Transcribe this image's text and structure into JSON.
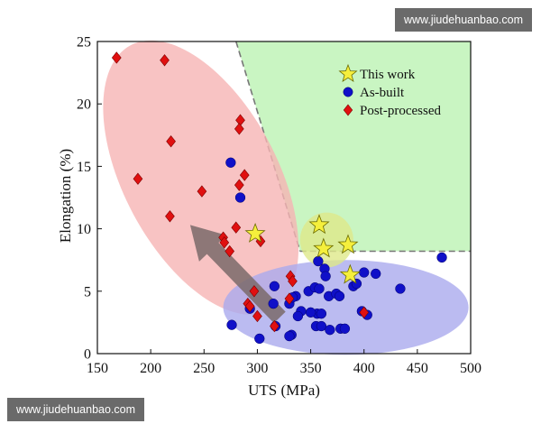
{
  "watermark": {
    "top": "www.jiudehuanbao.com",
    "bottom": "www.jiudehuanbao.com"
  },
  "chart_data": {
    "type": "scatter",
    "title": "",
    "xlabel": "UTS (MPa)",
    "ylabel": "Elongation (%)",
    "xlim": [
      150,
      500
    ],
    "ylim": [
      0,
      25
    ],
    "xticks": [
      150,
      200,
      250,
      300,
      350,
      400,
      450,
      500
    ],
    "yticks": [
      0,
      5,
      10,
      15,
      20,
      25
    ],
    "grid": false,
    "legend_position": "top-right",
    "colors": {
      "this_work": "#f5ef3c",
      "as_built": "#1010c8",
      "post_processed": "#e01010",
      "green_region": "#c9f5c2",
      "red_region": "#f6b4b4",
      "blue_region": "#aaaaee",
      "yellow_region": "#dfe88a",
      "arrow": "#7a6a6a"
    },
    "series": [
      {
        "name": "This work",
        "marker": "star",
        "points": [
          [
            358,
            10.3
          ],
          [
            362,
            8.4
          ],
          [
            385,
            8.7
          ],
          [
            387,
            6.3
          ],
          [
            298,
            9.6
          ]
        ]
      },
      {
        "name": "As-built",
        "marker": "circle",
        "points": [
          [
            275,
            15.3
          ],
          [
            284,
            12.5
          ],
          [
            473,
            7.7
          ],
          [
            357,
            7.4
          ],
          [
            363,
            6.8
          ],
          [
            364,
            6.2
          ],
          [
            348,
            5.0
          ],
          [
            354,
            5.3
          ],
          [
            358,
            5.2
          ],
          [
            367,
            4.6
          ],
          [
            374,
            4.8
          ],
          [
            377,
            4.6
          ],
          [
            390,
            5.4
          ],
          [
            393,
            5.6
          ],
          [
            400,
            6.5
          ],
          [
            411,
            6.4
          ],
          [
            434,
            5.2
          ],
          [
            316,
            5.4
          ],
          [
            330,
            4.0
          ],
          [
            336,
            4.6
          ],
          [
            341,
            3.4
          ],
          [
            338,
            3.0
          ],
          [
            356,
            3.2
          ],
          [
            360,
            3.2
          ],
          [
            355,
            2.2
          ],
          [
            360,
            2.2
          ],
          [
            368,
            1.9
          ],
          [
            378,
            2.0
          ],
          [
            382,
            2.0
          ],
          [
            398,
            3.4
          ],
          [
            403,
            3.1
          ],
          [
            276,
            2.3
          ],
          [
            302,
            1.2
          ],
          [
            317,
            2.2
          ],
          [
            332,
            1.5
          ],
          [
            330,
            1.4
          ],
          [
            293,
            3.6
          ],
          [
            315,
            4.0
          ],
          [
            333,
            4.5
          ],
          [
            350,
            3.3
          ]
        ]
      },
      {
        "name": "Post-processed",
        "marker": "diamond",
        "points": [
          [
            168,
            23.7
          ],
          [
            213,
            23.5
          ],
          [
            219,
            17.0
          ],
          [
            188,
            14.0
          ],
          [
            218,
            11.0
          ],
          [
            248,
            13.0
          ],
          [
            284,
            18.7
          ],
          [
            283,
            18.0
          ],
          [
            288,
            14.3
          ],
          [
            283,
            13.5
          ],
          [
            280,
            10.1
          ],
          [
            268,
            9.3
          ],
          [
            269,
            8.9
          ],
          [
            274,
            8.2
          ],
          [
            303,
            9.0
          ],
          [
            331,
            6.2
          ],
          [
            333,
            5.8
          ],
          [
            297,
            5.0
          ],
          [
            291,
            4.0
          ],
          [
            293,
            3.8
          ],
          [
            300,
            3.0
          ],
          [
            330,
            4.4
          ],
          [
            316,
            2.2
          ],
          [
            400,
            3.3
          ]
        ]
      }
    ],
    "shaded_regions": [
      {
        "kind": "polygon",
        "color_key": "green_region",
        "points": [
          [
            280,
            25
          ],
          [
            500,
            25
          ],
          [
            500,
            8.2
          ],
          [
            340,
            8.2
          ]
        ],
        "dashed_edges": [
          [
            [
              280,
              25
            ],
            [
              340,
              8.2
            ]
          ],
          [
            [
              340,
              8.2
            ],
            [
              500,
              8.2
            ]
          ]
        ]
      },
      {
        "kind": "ellipse",
        "color_key": "red_region",
        "cx": 247,
        "cy": 14.1,
        "rx": 72,
        "ry": 12.0,
        "rotation_deg": -28
      },
      {
        "kind": "ellipse",
        "color_key": "blue_region",
        "cx": 383,
        "cy": 3.7,
        "rx": 115,
        "ry": 3.8,
        "rotation_deg": 0
      },
      {
        "kind": "ellipse",
        "color_key": "yellow_region",
        "cx": 365,
        "cy": 9.1,
        "rx": 25,
        "ry": 2.2,
        "rotation_deg": 0
      }
    ],
    "arrow": {
      "from": [
        321,
        2.9
      ],
      "to": [
        237,
        10.3
      ],
      "color_key": "arrow"
    }
  }
}
